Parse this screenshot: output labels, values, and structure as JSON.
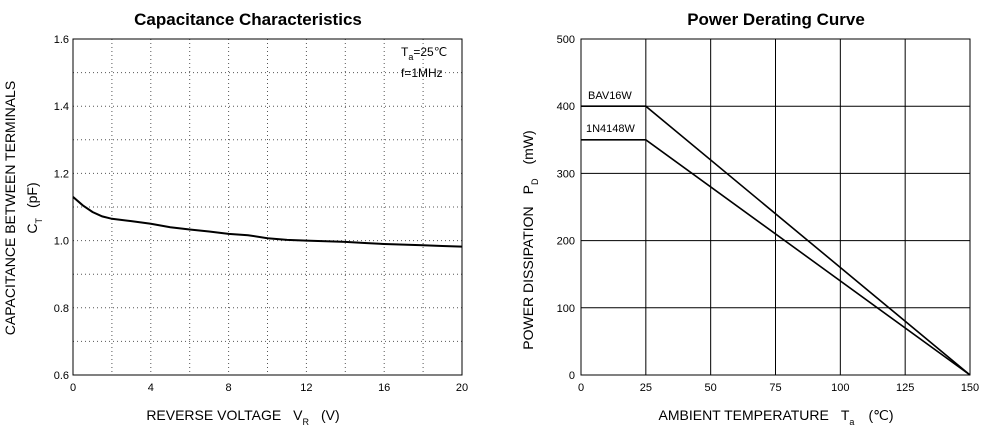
{
  "chart_data": [
    {
      "type": "line",
      "title": "Capacitance Characteristics",
      "xlabel": "REVERSE VOLTAGE",
      "xlabel_symbol": "V",
      "xlabel_sub": "R",
      "xlabel_unit": "(V)",
      "ylabel": "CAPACITANCE BETWEEN TERMINALS",
      "ylabel_symbol": "C",
      "ylabel_sub": "T",
      "ylabel_unit": "(pF)",
      "xlim": [
        0,
        20
      ],
      "ylim": [
        0.6,
        1.6
      ],
      "xticks": [
        "0",
        "4",
        "8",
        "12",
        "16",
        "20"
      ],
      "yticks": [
        "0.6",
        "0.8",
        "1.0",
        "1.2",
        "1.4",
        "1.6"
      ],
      "grid": "dotted",
      "annotation": {
        "ta_symbol": "T",
        "ta_sub": "a",
        "ta_value": "=25℃",
        "freq": "f=1MHz"
      },
      "series": [
        {
          "x": [
            0,
            0.5,
            1,
            1.5,
            2,
            3,
            4,
            5,
            6,
            7,
            8,
            9,
            10,
            11,
            12,
            13,
            14,
            15,
            16,
            17,
            18,
            19,
            20
          ],
          "y": [
            1.13,
            1.105,
            1.085,
            1.072,
            1.065,
            1.058,
            1.05,
            1.04,
            1.033,
            1.027,
            1.02,
            1.016,
            1.007,
            1.002,
            1.0,
            0.998,
            0.996,
            0.993,
            0.99,
            0.988,
            0.986,
            0.984,
            0.982
          ]
        }
      ]
    },
    {
      "type": "line",
      "title": "Power Derating Curve",
      "xlabel": "AMBIENT TEMPERATURE",
      "xlabel_symbol": "T",
      "xlabel_sub": "a",
      "xlabel_unit": "(℃)",
      "ylabel": "POWER DISSIPATION",
      "ylabel_symbol": "P",
      "ylabel_sub": "D",
      "ylabel_unit": "(mW)",
      "xlim": [
        0,
        150
      ],
      "ylim": [
        0,
        500
      ],
      "xticks": [
        "0",
        "25",
        "50",
        "75",
        "100",
        "125",
        "150"
      ],
      "yticks": [
        "0",
        "100",
        "200",
        "300",
        "400",
        "500"
      ],
      "grid": "solid",
      "series": [
        {
          "name": "BAV16W",
          "x": [
            0,
            25,
            150
          ],
          "y": [
            400,
            400,
            0
          ]
        },
        {
          "name": "1N4148W",
          "x": [
            0,
            25,
            150
          ],
          "y": [
            350,
            350,
            0
          ]
        }
      ]
    }
  ]
}
